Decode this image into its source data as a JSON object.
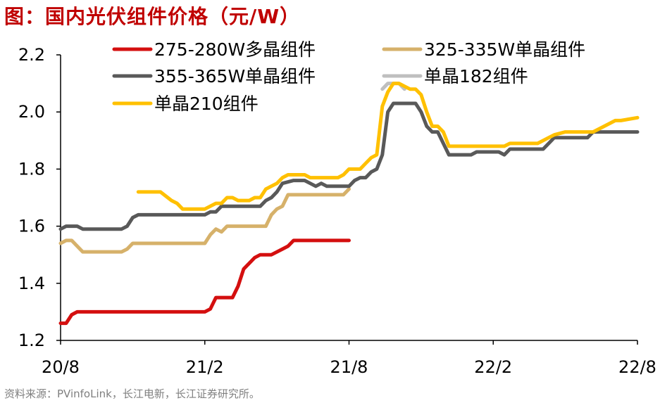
{
  "title": "图：国内光伏组件价格（元/W）",
  "source": "资料来源：PVinfoLink，长江电新，长江证券研究所。",
  "chart_data": {
    "type": "line",
    "ylim": [
      1.2,
      2.2
    ],
    "xlim": [
      0,
      104
    ],
    "y_ticks": [
      "2.2",
      "2.0",
      "1.8",
      "1.6",
      "1.4",
      "1.2"
    ],
    "y_tick_values": [
      2.2,
      2.0,
      1.8,
      1.6,
      1.4,
      1.2
    ],
    "x_ticks": [
      "20/8",
      "21/2",
      "21/8",
      "22/2",
      "22/8"
    ],
    "x_tick_values": [
      0,
      26,
      52,
      78,
      104
    ],
    "grid": false,
    "legend": "top",
    "series": [
      {
        "name": "275-280W多晶组件",
        "color": "#d40f0f",
        "x": [
          0,
          1,
          2,
          3,
          5,
          10,
          20,
          26,
          27,
          28,
          31,
          32,
          33,
          34,
          35,
          36,
          37,
          38,
          40,
          41,
          42,
          43,
          46,
          52
        ],
        "y": [
          1.26,
          1.26,
          1.29,
          1.3,
          1.3,
          1.3,
          1.3,
          1.3,
          1.31,
          1.35,
          1.35,
          1.39,
          1.45,
          1.47,
          1.49,
          1.5,
          1.5,
          1.5,
          1.52,
          1.53,
          1.55,
          1.55,
          1.55,
          1.55
        ]
      },
      {
        "name": "325-335W单晶组件",
        "color": "#d6b16a",
        "x": [
          0,
          1,
          2,
          3,
          4,
          5,
          8,
          11,
          12,
          13,
          20,
          26,
          27,
          28,
          29,
          30,
          32,
          36,
          37,
          38,
          39,
          40,
          41,
          42,
          43,
          46,
          50,
          51,
          52
        ],
        "y": [
          1.54,
          1.55,
          1.55,
          1.53,
          1.51,
          1.51,
          1.51,
          1.51,
          1.52,
          1.54,
          1.54,
          1.54,
          1.57,
          1.59,
          1.58,
          1.6,
          1.6,
          1.6,
          1.6,
          1.64,
          1.66,
          1.67,
          1.71,
          1.71,
          1.71,
          1.71,
          1.71,
          1.71,
          1.73
        ]
      },
      {
        "name": "355-365W单晶组件",
        "color": "#595959",
        "x": [
          0,
          1,
          2,
          3,
          4,
          8,
          11,
          12,
          13,
          14,
          16,
          20,
          26,
          27,
          28,
          29,
          30,
          33,
          36,
          37,
          38,
          39,
          40,
          42,
          44,
          45,
          46,
          47,
          48,
          50,
          51,
          52,
          53,
          54,
          55,
          56,
          57,
          58,
          59,
          60,
          62,
          64,
          65,
          66,
          67,
          68,
          70,
          71,
          73,
          74,
          75,
          76,
          78,
          79,
          80,
          81,
          84,
          85,
          86,
          87,
          88,
          89,
          92,
          93,
          95,
          96,
          98,
          104
        ],
        "y": [
          1.59,
          1.6,
          1.6,
          1.6,
          1.59,
          1.59,
          1.59,
          1.6,
          1.63,
          1.64,
          1.64,
          1.64,
          1.64,
          1.65,
          1.65,
          1.67,
          1.67,
          1.67,
          1.67,
          1.69,
          1.7,
          1.72,
          1.75,
          1.76,
          1.76,
          1.75,
          1.74,
          1.75,
          1.74,
          1.74,
          1.74,
          1.74,
          1.76,
          1.77,
          1.77,
          1.79,
          1.8,
          1.85,
          2.0,
          2.03,
          2.03,
          2.03,
          2.0,
          1.95,
          1.93,
          1.93,
          1.85,
          1.85,
          1.85,
          1.85,
          1.86,
          1.86,
          1.86,
          1.86,
          1.85,
          1.87,
          1.87,
          1.87,
          1.87,
          1.87,
          1.89,
          1.91,
          1.91,
          1.91,
          1.91,
          1.93,
          1.93,
          1.93
        ]
      },
      {
        "name": "单晶182组件",
        "color": "#bfbfbf",
        "x": [
          58,
          59,
          60,
          61,
          62
        ],
        "y": [
          2.08,
          2.1,
          2.1,
          2.1,
          2.08
        ]
      },
      {
        "name": "单晶210组件",
        "color": "#ffc000",
        "x": [
          14,
          18,
          20,
          21,
          22,
          23,
          26,
          28,
          29,
          30,
          31,
          32,
          34,
          35,
          36,
          37,
          39,
          40,
          41,
          42,
          44,
          45,
          46,
          48,
          50,
          51,
          52,
          53,
          54,
          55,
          56,
          57,
          58,
          59,
          60,
          61,
          62,
          63,
          64,
          65,
          66,
          67,
          68,
          69,
          70,
          74,
          76,
          78,
          80,
          81,
          84,
          85,
          86,
          87,
          88,
          89,
          91,
          93,
          94,
          96,
          98,
          100,
          101,
          104
        ],
        "y": [
          1.72,
          1.72,
          1.69,
          1.68,
          1.66,
          1.66,
          1.66,
          1.68,
          1.68,
          1.7,
          1.7,
          1.69,
          1.69,
          1.7,
          1.7,
          1.73,
          1.75,
          1.77,
          1.78,
          1.78,
          1.78,
          1.77,
          1.77,
          1.77,
          1.77,
          1.78,
          1.8,
          1.8,
          1.8,
          1.82,
          1.84,
          1.85,
          2.02,
          2.07,
          2.1,
          2.1,
          2.09,
          2.08,
          2.08,
          2.06,
          2.0,
          1.95,
          1.95,
          1.93,
          1.88,
          1.88,
          1.88,
          1.88,
          1.88,
          1.89,
          1.89,
          1.89,
          1.89,
          1.9,
          1.91,
          1.92,
          1.93,
          1.93,
          1.93,
          1.93,
          1.95,
          1.97,
          1.97,
          1.98
        ]
      }
    ]
  }
}
